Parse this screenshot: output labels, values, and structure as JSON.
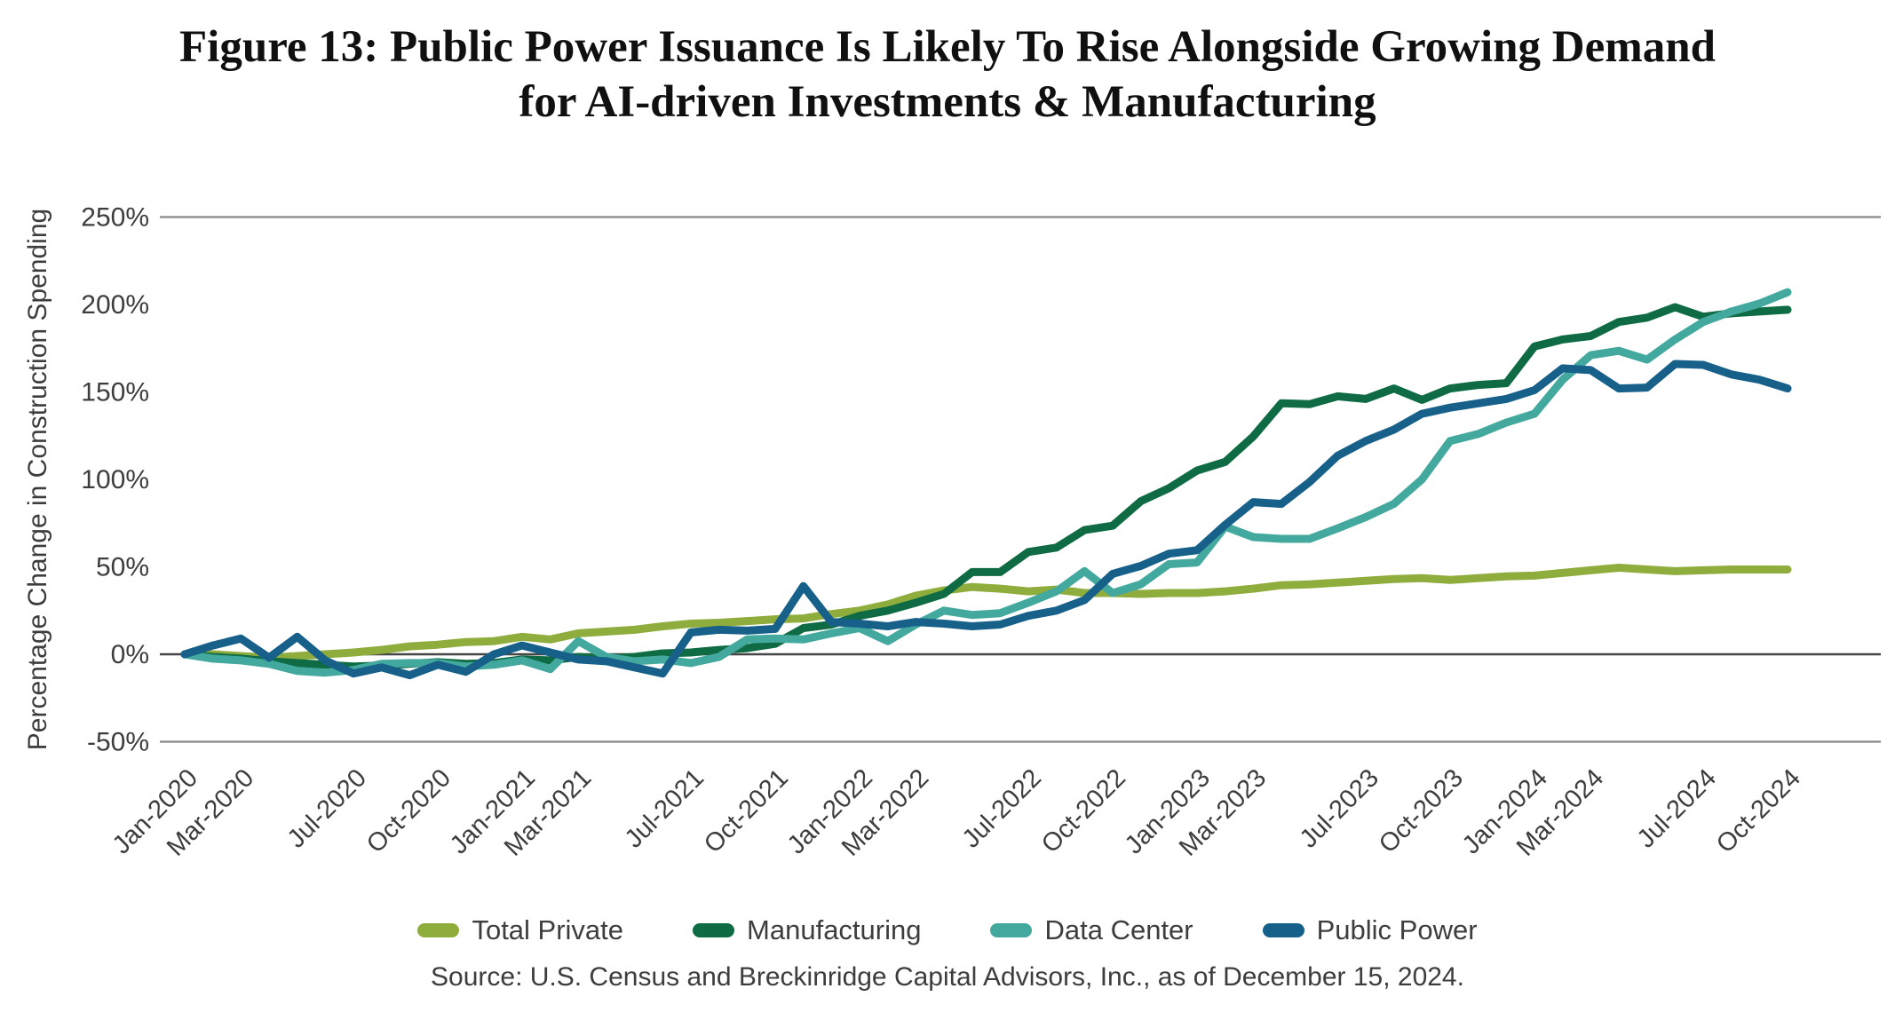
{
  "title_line1": "Figure 13: Public Power Issuance Is Likely To Rise Alongside Growing Demand",
  "title_line2": "for AI-driven Investments & Manufacturing",
  "source": "Source: U.S. Census and Breckinridge Capital Advisors, Inc., as of December 15, 2024.",
  "colors": {
    "total_private": "#8FAD3D",
    "manufacturing": "#0E6B44",
    "data_center": "#43A89E",
    "public_power": "#17608A",
    "gridline": "#878787",
    "zero_line": "#454545",
    "axis_text": "#3d3d3d",
    "title_text": "#101010"
  },
  "chart_data": {
    "type": "line",
    "title": "Figure 13: Public Power Issuance Is Likely To Rise Alongside Growing Demand for AI-driven Investments & Manufacturing",
    "xlabel": "",
    "ylabel": "Percentage Change in Construction Spending",
    "ylim": [
      -50,
      250
    ],
    "yticks": [
      {
        "value": 250,
        "label": "250%"
      },
      {
        "value": 200,
        "label": "200%"
      },
      {
        "value": 150,
        "label": "150%"
      },
      {
        "value": 100,
        "label": "100%"
      },
      {
        "value": 50,
        "label": "50%"
      },
      {
        "value": 0,
        "label": "0%"
      },
      {
        "value": -50,
        "label": "-50%"
      }
    ],
    "gridlines": [
      {
        "value": 250,
        "style": "grid"
      },
      {
        "value": 0,
        "style": "zero"
      },
      {
        "value": -50,
        "style": "grid"
      }
    ],
    "x_unit": "month",
    "x_range": [
      "Jan-2020",
      "Oct-2024"
    ],
    "n_points": 58,
    "xticks": [
      {
        "m": 0,
        "label": "Jan-2020"
      },
      {
        "m": 2,
        "label": "Mar-2020"
      },
      {
        "m": 6,
        "label": "Jul-2020"
      },
      {
        "m": 9,
        "label": "Oct-2020"
      },
      {
        "m": 12,
        "label": "Jan-2021"
      },
      {
        "m": 14,
        "label": "Mar-2021"
      },
      {
        "m": 18,
        "label": "Jul-2021"
      },
      {
        "m": 21,
        "label": "Oct-2021"
      },
      {
        "m": 24,
        "label": "Jan-2022"
      },
      {
        "m": 26,
        "label": "Mar-2022"
      },
      {
        "m": 30,
        "label": "Jul-2022"
      },
      {
        "m": 33,
        "label": "Oct-2022"
      },
      {
        "m": 36,
        "label": "Jan-2023"
      },
      {
        "m": 38,
        "label": "Mar-2023"
      },
      {
        "m": 42,
        "label": "Jul-2023"
      },
      {
        "m": 45,
        "label": "Oct-2023"
      },
      {
        "m": 48,
        "label": "Jan-2024"
      },
      {
        "m": 50,
        "label": "Mar-2024"
      },
      {
        "m": 54,
        "label": "Jul-2024"
      },
      {
        "m": 57,
        "label": "Oct-2024"
      }
    ],
    "legend_position": "bottom",
    "series": [
      {
        "name": "Total Private",
        "color_key": "total_private",
        "values": [
          0,
          0,
          -1,
          -2,
          -1,
          0,
          1,
          2.5,
          4.5,
          5.5,
          7,
          7.5,
          10,
          8.5,
          12,
          13,
          14,
          16,
          17.5,
          18,
          19,
          20,
          20.5,
          23,
          25,
          28.5,
          33.5,
          36.5,
          38.5,
          37.5,
          36,
          37,
          35,
          35,
          34.5,
          35,
          35,
          36,
          37.5,
          39.5,
          40,
          41,
          42,
          43,
          43.5,
          42.5,
          43.5,
          44.5,
          45,
          46.5,
          48,
          49.5,
          48.5,
          47.5,
          48,
          48.5,
          48.5,
          48.5
        ]
      },
      {
        "name": "Manufacturing",
        "color_key": "manufacturing",
        "values": [
          0,
          -1.5,
          -2.5,
          -4,
          -5,
          -6,
          -7,
          -6.5,
          -5.5,
          -4.5,
          -5.5,
          -5,
          -3,
          -3.5,
          -1.5,
          -2.5,
          -1.5,
          0.5,
          1,
          2.5,
          3.5,
          6,
          15,
          17,
          22,
          25,
          29.5,
          34.5,
          47,
          47,
          58.5,
          61,
          71,
          73.5,
          87.5,
          95,
          105,
          110,
          124.5,
          143.5,
          143,
          147.5,
          146,
          152,
          145.5,
          152,
          154,
          155,
          176,
          180,
          182,
          190,
          192.5,
          198.5,
          193,
          195,
          196,
          197
        ]
      },
      {
        "name": "Data Center",
        "color_key": "data_center",
        "values": [
          0,
          -2.5,
          -3.5,
          -5.5,
          -9.5,
          -10.5,
          -9,
          -5.5,
          -5,
          -5,
          -7,
          -6,
          -3.5,
          -8.5,
          7.5,
          -1.5,
          -4,
          -3,
          -5,
          -1.5,
          8.5,
          9,
          8.5,
          12,
          15,
          7.5,
          17,
          25,
          22.5,
          23.5,
          29.5,
          36,
          47.5,
          35,
          40,
          51.5,
          52.5,
          73,
          67,
          66,
          66,
          72,
          78.5,
          86,
          100,
          122,
          126,
          132.5,
          137.5,
          157,
          171,
          173.5,
          168.5,
          180,
          190,
          196,
          200.5,
          207
        ]
      },
      {
        "name": "Public Power",
        "color_key": "public_power",
        "values": [
          0,
          5,
          9,
          -2,
          10,
          -3.5,
          -11,
          -7.5,
          -12,
          -6,
          -10,
          0,
          5,
          1,
          -3,
          -4,
          -7.5,
          -11,
          12.5,
          14,
          13.5,
          14.5,
          39,
          18.5,
          17.5,
          16,
          18.5,
          17.5,
          16,
          17,
          22,
          25,
          31,
          46,
          50.5,
          57.5,
          59.5,
          74,
          87,
          86,
          98.5,
          113.5,
          122,
          128.5,
          137.5,
          141,
          143.5,
          146,
          151,
          163.5,
          162.5,
          152,
          152.5,
          166,
          165.5,
          160,
          157,
          152
        ]
      }
    ],
    "source": "Source: U.S. Census and Breckinridge Capital Advisors, Inc., as of December 15, 2024."
  }
}
